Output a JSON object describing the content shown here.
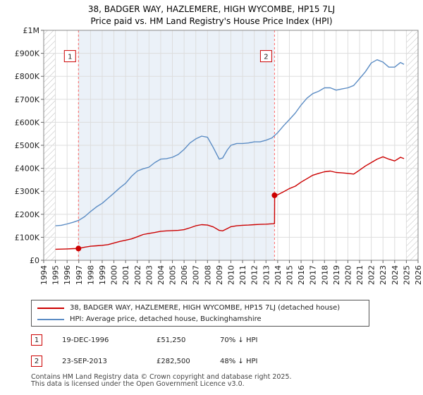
{
  "chart_data": {
    "type": "line",
    "title": "38, BADGER WAY, HAZLEMERE, HIGH WYCOMBE, HP15 7LJ",
    "subtitle": "Price paid vs. HM Land Registry's House Price Index (HPI)",
    "xlim": [
      1994,
      2026
    ],
    "ylim": [
      0,
      1000000
    ],
    "x_ticks": [
      1994,
      1995,
      1996,
      1997,
      1998,
      1999,
      2000,
      2001,
      2002,
      2003,
      2004,
      2005,
      2006,
      2007,
      2008,
      2009,
      2010,
      2011,
      2012,
      2013,
      2014,
      2015,
      2016,
      2017,
      2018,
      2019,
      2020,
      2021,
      2022,
      2023,
      2024,
      2025,
      2026
    ],
    "y_ticks": [
      {
        "value": 0,
        "label": "£0"
      },
      {
        "value": 100000,
        "label": "£100K"
      },
      {
        "value": 200000,
        "label": "£200K"
      },
      {
        "value": 300000,
        "label": "£300K"
      },
      {
        "value": 400000,
        "label": "£400K"
      },
      {
        "value": 500000,
        "label": "£500K"
      },
      {
        "value": 600000,
        "label": "£600K"
      },
      {
        "value": 700000,
        "label": "£700K"
      },
      {
        "value": 800000,
        "label": "£800K"
      },
      {
        "value": 900000,
        "label": "£900K"
      },
      {
        "value": 1000000,
        "label": "£1M"
      }
    ],
    "hatch_before": 1995.0,
    "hatch_after": 2025.0,
    "series": [
      {
        "name": "38, BADGER WAY, HAZLEMERE, HIGH WYCOMBE, HP15 7LJ (detached house)",
        "color": "#cc0000",
        "x": [
          1995.0,
          1995.5,
          1996.0,
          1996.5,
          1996.97,
          1997.5,
          1998.0,
          1998.5,
          1999.0,
          1999.5,
          2000.0,
          2000.5,
          2001.0,
          2001.5,
          2002.0,
          2002.5,
          2003.0,
          2003.5,
          2004.0,
          2004.5,
          2005.0,
          2005.5,
          2006.0,
          2006.5,
          2007.0,
          2007.5,
          2008.0,
          2008.5,
          2009.0,
          2009.3,
          2009.7,
          2010.0,
          2010.5,
          2011.0,
          2011.5,
          2012.0,
          2012.5,
          2013.0,
          2013.6,
          2013.73,
          2013.74,
          2014.0,
          2014.5,
          2015.0,
          2015.5,
          2016.0,
          2016.5,
          2017.0,
          2017.5,
          2018.0,
          2018.5,
          2019.0,
          2019.5,
          2020.0,
          2020.5,
          2021.0,
          2021.5,
          2022.0,
          2022.5,
          2023.0,
          2023.5,
          2024.0,
          2024.5,
          2024.8
        ],
        "values": [
          48000,
          48500,
          49500,
          50500,
          51250,
          57000,
          61000,
          63000,
          65000,
          68000,
          75000,
          82000,
          87000,
          93000,
          102000,
          112000,
          117000,
          121000,
          126000,
          128000,
          129000,
          130000,
          133000,
          141000,
          150000,
          155000,
          153000,
          145000,
          130000,
          128000,
          138000,
          146000,
          150000,
          152000,
          153000,
          155000,
          156000,
          157000,
          159000,
          159500,
          282500,
          285000,
          298000,
          312000,
          322000,
          340000,
          355000,
          370000,
          378000,
          385000,
          388000,
          382000,
          380000,
          378000,
          375000,
          392000,
          410000,
          425000,
          440000,
          450000,
          440000,
          432000,
          448000,
          442000
        ]
      },
      {
        "name": "HPI: Average price, detached house, Buckinghamshire",
        "color": "#5b8cc4",
        "x": [
          1995.0,
          1995.5,
          1996.0,
          1996.5,
          1997.0,
          1997.5,
          1998.0,
          1998.5,
          1999.0,
          1999.5,
          2000.0,
          2000.5,
          2001.0,
          2001.5,
          2002.0,
          2002.5,
          2003.0,
          2003.5,
          2004.0,
          2004.5,
          2005.0,
          2005.5,
          2006.0,
          2006.5,
          2007.0,
          2007.5,
          2008.0,
          2008.5,
          2009.0,
          2009.3,
          2009.7,
          2010.0,
          2010.5,
          2011.0,
          2011.5,
          2012.0,
          2012.5,
          2013.0,
          2013.5,
          2014.0,
          2014.5,
          2015.0,
          2015.5,
          2016.0,
          2016.5,
          2017.0,
          2017.5,
          2018.0,
          2018.5,
          2019.0,
          2019.5,
          2020.0,
          2020.5,
          2021.0,
          2021.5,
          2022.0,
          2022.5,
          2023.0,
          2023.5,
          2024.0,
          2024.5,
          2024.8
        ],
        "values": [
          150000,
          152000,
          158000,
          165000,
          174000,
          190000,
          212000,
          232000,
          248000,
          270000,
          292000,
          315000,
          335000,
          365000,
          388000,
          398000,
          405000,
          425000,
          440000,
          442000,
          448000,
          460000,
          482000,
          510000,
          528000,
          540000,
          535000,
          490000,
          440000,
          445000,
          480000,
          500000,
          508000,
          508000,
          510000,
          515000,
          515000,
          522000,
          532000,
          555000,
          585000,
          612000,
          640000,
          675000,
          705000,
          725000,
          735000,
          750000,
          750000,
          740000,
          745000,
          750000,
          760000,
          790000,
          820000,
          858000,
          872000,
          862000,
          840000,
          840000,
          860000,
          852000
        ]
      }
    ],
    "sales": [
      {
        "id": "1",
        "x": 1996.97,
        "value": 51250
      },
      {
        "id": "2",
        "x": 2013.73,
        "value": 282500
      }
    ]
  },
  "legend": {
    "property_label": "38, BADGER WAY, HAZLEMERE, HIGH WYCOMBE, HP15 7LJ (detached house)",
    "hpi_label": "HPI: Average price, detached house, Buckinghamshire"
  },
  "sales_table": [
    {
      "id": "1",
      "date": "19-DEC-1996",
      "price": "£51,250",
      "hpi": "70% ↓ HPI"
    },
    {
      "id": "2",
      "date": "23-SEP-2013",
      "price": "£282,500",
      "hpi": "48% ↓ HPI"
    }
  ],
  "footer": {
    "line1": "Contains HM Land Registry data © Crown copyright and database right 2025.",
    "line2": "This data is licensed under the Open Government Licence v3.0."
  },
  "colors": {
    "property": "#cc0000",
    "hpi": "#5b8cc4",
    "marker_line": "#ff6666",
    "grid": "#dddddd",
    "shade": "#dbe6f3"
  }
}
